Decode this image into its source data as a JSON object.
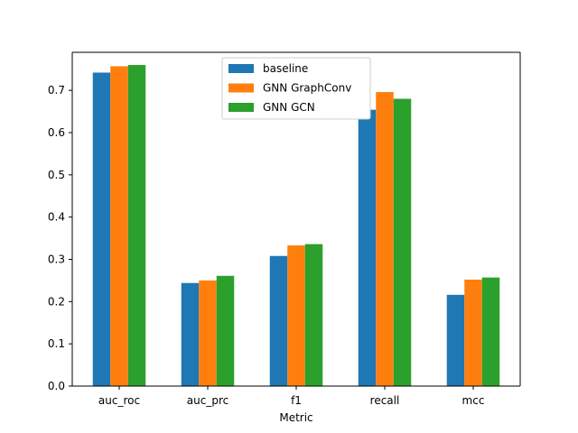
{
  "chart_data": {
    "type": "bar",
    "categories": [
      "auc_roc",
      "auc_prc",
      "f1",
      "recall",
      "mcc"
    ],
    "series": [
      {
        "name": "baseline",
        "color": "#1f77b4",
        "values": [
          0.742,
          0.244,
          0.308,
          0.654,
          0.216
        ]
      },
      {
        "name": "GNN GraphConv",
        "color": "#ff7f0e",
        "values": [
          0.757,
          0.25,
          0.333,
          0.696,
          0.252
        ]
      },
      {
        "name": "GNN GCN",
        "color": "#2ca02c",
        "values": [
          0.76,
          0.261,
          0.336,
          0.68,
          0.257
        ]
      }
    ],
    "title": "",
    "xlabel": "Metric",
    "ylabel": "",
    "ylim": [
      0,
      0.79
    ],
    "yticks": [
      0.0,
      0.1,
      0.2,
      0.3,
      0.4,
      0.5,
      0.6,
      0.7
    ],
    "ytick_labels": [
      "0.0",
      "0.1",
      "0.2",
      "0.3",
      "0.4",
      "0.5",
      "0.6",
      "0.7"
    ],
    "grid": false,
    "legend_position": "upper-center"
  }
}
